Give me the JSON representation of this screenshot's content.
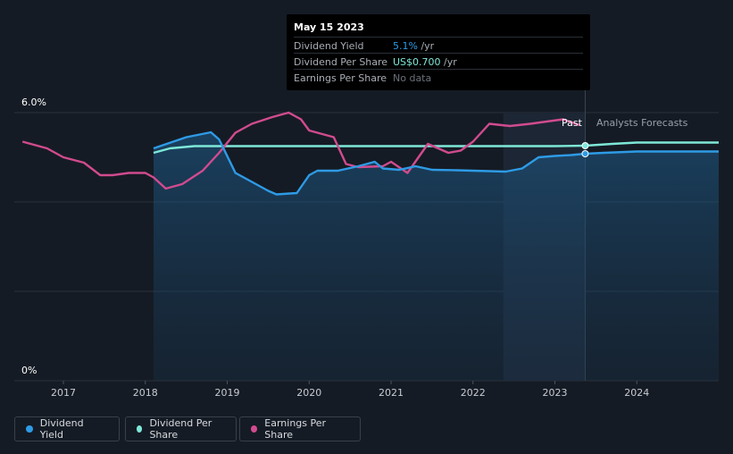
{
  "tooltip": {
    "date": "May 15 2023",
    "rows": [
      {
        "label": "Dividend Yield",
        "value": "5.1%",
        "unit": " /yr",
        "color": "#2e9be6"
      },
      {
        "label": "Dividend Per Share",
        "value": "US$0.700",
        "unit": " /yr",
        "color": "#7ee8d8"
      },
      {
        "label": "Earnings Per Share",
        "value": "No data",
        "unit": "",
        "color": "#6b717a"
      }
    ]
  },
  "labels": {
    "past": "Past",
    "forecast": "Analysts Forecasts"
  },
  "legend": [
    {
      "label": "Dividend Yield",
      "color": "#2e9be6"
    },
    {
      "label": "Dividend Per Share",
      "color": "#7ee8d8"
    },
    {
      "label": "Earnings Per Share",
      "color": "#d14b8f"
    }
  ],
  "chart_data": {
    "type": "line",
    "y_tick_labels": [
      "6.0%",
      "0%"
    ],
    "ylim": [
      0,
      6.0
    ],
    "xlim": [
      2016.4,
      2025.0
    ],
    "x_ticks": [
      "2017",
      "2018",
      "2019",
      "2020",
      "2021",
      "2022",
      "2023",
      "2024"
    ],
    "grid": true,
    "forecast_start": 2023.37,
    "past_highlight_start": 2022.37,
    "series": [
      {
        "name": "Dividend Yield",
        "color": "#2e9be6",
        "fill": true,
        "points": [
          [
            2018.1,
            5.2
          ],
          [
            2018.5,
            5.45
          ],
          [
            2018.8,
            5.56
          ],
          [
            2018.9,
            5.4
          ],
          [
            2019.1,
            4.65
          ],
          [
            2019.3,
            4.45
          ],
          [
            2019.5,
            4.25
          ],
          [
            2019.6,
            4.17
          ],
          [
            2019.85,
            4.2
          ],
          [
            2020.0,
            4.6
          ],
          [
            2020.1,
            4.7
          ],
          [
            2020.35,
            4.7
          ],
          [
            2020.6,
            4.8
          ],
          [
            2020.8,
            4.9
          ],
          [
            2020.9,
            4.75
          ],
          [
            2021.1,
            4.72
          ],
          [
            2021.3,
            4.8
          ],
          [
            2021.5,
            4.72
          ],
          [
            2021.8,
            4.71
          ],
          [
            2022.0,
            4.7
          ],
          [
            2022.4,
            4.68
          ],
          [
            2022.6,
            4.75
          ],
          [
            2022.8,
            5.0
          ],
          [
            2023.0,
            5.03
          ],
          [
            2023.2,
            5.05
          ],
          [
            2023.37,
            5.08
          ],
          [
            2023.6,
            5.1
          ],
          [
            2024.0,
            5.13
          ],
          [
            2025.0,
            5.13
          ]
        ]
      },
      {
        "name": "Dividend Per Share",
        "color": "#7ee8d8",
        "fill": false,
        "points": [
          [
            2018.1,
            5.1
          ],
          [
            2018.3,
            5.2
          ],
          [
            2018.6,
            5.25
          ],
          [
            2019.0,
            5.25
          ],
          [
            2020.0,
            5.25
          ],
          [
            2021.0,
            5.25
          ],
          [
            2022.0,
            5.25
          ],
          [
            2023.0,
            5.25
          ],
          [
            2023.37,
            5.26
          ],
          [
            2023.7,
            5.3
          ],
          [
            2024.0,
            5.33
          ],
          [
            2025.0,
            5.33
          ]
        ]
      },
      {
        "name": "Earnings Per Share",
        "color": "#d14b8f",
        "fill": false,
        "points": [
          [
            2016.5,
            5.35
          ],
          [
            2016.8,
            5.2
          ],
          [
            2017.0,
            5.0
          ],
          [
            2017.25,
            4.88
          ],
          [
            2017.45,
            4.6
          ],
          [
            2017.6,
            4.6
          ],
          [
            2017.8,
            4.65
          ],
          [
            2018.0,
            4.65
          ],
          [
            2018.1,
            4.55
          ],
          [
            2018.25,
            4.3
          ],
          [
            2018.45,
            4.4
          ],
          [
            2018.7,
            4.7
          ],
          [
            2018.9,
            5.1
          ],
          [
            2019.1,
            5.55
          ],
          [
            2019.3,
            5.75
          ],
          [
            2019.55,
            5.9
          ],
          [
            2019.75,
            6.0
          ],
          [
            2019.9,
            5.85
          ],
          [
            2020.0,
            5.6
          ],
          [
            2020.3,
            5.45
          ],
          [
            2020.45,
            4.85
          ],
          [
            2020.6,
            4.78
          ],
          [
            2020.9,
            4.8
          ],
          [
            2021.0,
            4.9
          ],
          [
            2021.2,
            4.65
          ],
          [
            2021.45,
            5.3
          ],
          [
            2021.7,
            5.1
          ],
          [
            2021.85,
            5.15
          ],
          [
            2022.0,
            5.35
          ],
          [
            2022.2,
            5.75
          ],
          [
            2022.45,
            5.7
          ],
          [
            2022.7,
            5.75
          ],
          [
            2022.9,
            5.8
          ],
          [
            2023.1,
            5.85
          ],
          [
            2023.3,
            5.72
          ]
        ]
      }
    ]
  }
}
